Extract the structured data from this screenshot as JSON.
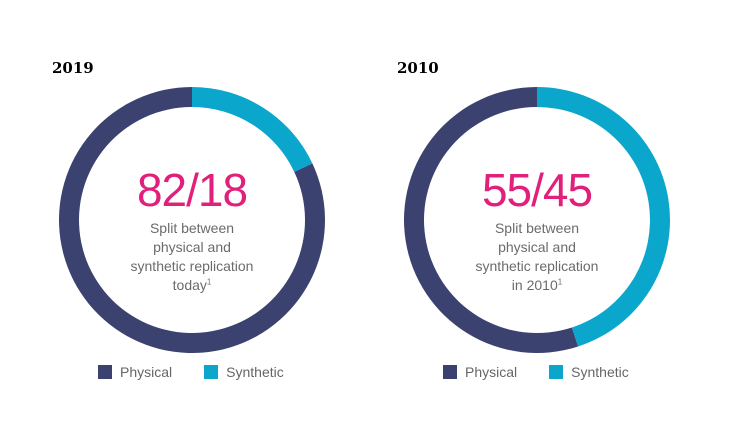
{
  "chart_data": [
    {
      "type": "pie",
      "variant": "donut",
      "title": "2019",
      "categories": [
        "Physical",
        "Synthetic"
      ],
      "values": [
        82,
        18
      ],
      "center_value": "82/18",
      "center_caption_lines": [
        "Split between",
        "physical and",
        "synthetic replication",
        "today"
      ],
      "footnote_mark": "1",
      "legend": [
        "Physical",
        "Synthetic"
      ]
    },
    {
      "type": "pie",
      "variant": "donut",
      "title": "2010",
      "categories": [
        "Physical",
        "Synthetic"
      ],
      "values": [
        55,
        45
      ],
      "center_value": "55/45",
      "center_caption_lines": [
        "Split between",
        "physical and",
        "synthetic replication",
        "in 2010"
      ],
      "footnote_mark": "1",
      "legend": [
        "Physical",
        "Synthetic"
      ]
    }
  ],
  "colors": {
    "physical": "#3b4270",
    "synthetic": "#0aa6cc",
    "accent": "#e0207a",
    "caption": "#6b6b6b"
  }
}
